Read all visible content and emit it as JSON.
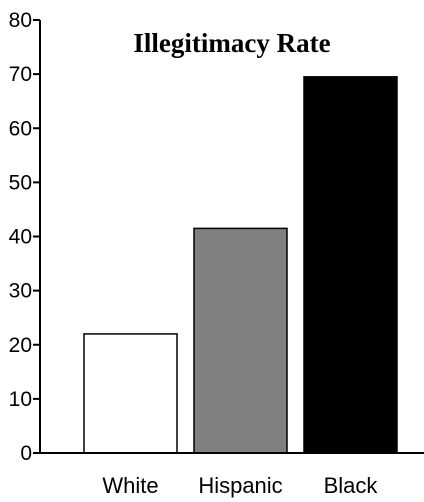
{
  "chart_data": {
    "type": "bar",
    "title": "Illegitimacy Rate",
    "xlabel": "",
    "ylabel": "",
    "categories": [
      "White",
      "Hispanic",
      "Black"
    ],
    "values": [
      22,
      41.5,
      69.5
    ],
    "bar_colors": [
      "#ffffff",
      "#808080",
      "#000000"
    ],
    "bar_outline_color": "#000000",
    "ylim": [
      0,
      80
    ],
    "yticks": [
      0,
      10,
      20,
      30,
      40,
      50,
      60,
      70,
      80
    ],
    "grid": false,
    "legend": "none"
  }
}
